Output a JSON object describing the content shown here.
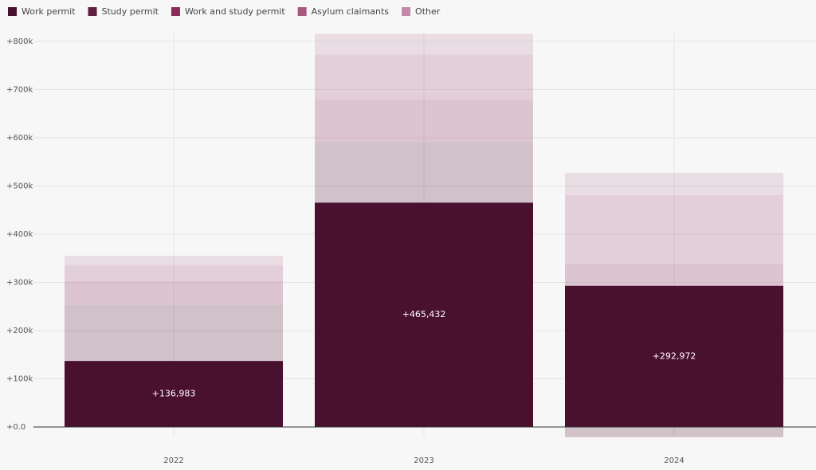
{
  "chart_data": {
    "type": "stacked_bar",
    "categories": [
      "2022",
      "2023",
      "2024"
    ],
    "series": [
      {
        "name": "Work permit",
        "color": "#4a1030",
        "values": [
          136983,
          465432,
          292972
        ],
        "value_labels": [
          "+136,983",
          "+465,432",
          "+292,972"
        ]
      },
      {
        "name": "Study permit",
        "color": "#5e1f40",
        "values": [
          116000,
          125000,
          -21000
        ]
      },
      {
        "name": "Work and study permit",
        "color": "#8a2b5a",
        "values": [
          49000,
          89000,
          46000
        ]
      },
      {
        "name": "Asylum claimants",
        "color": "#a8587f",
        "values": [
          33000,
          93000,
          142000
        ]
      },
      {
        "name": "Other",
        "color": "#c08aa8",
        "values": [
          20000,
          43000,
          46000
        ]
      }
    ],
    "ylim": [
      -25000,
      830000
    ],
    "yticks": [
      {
        "value": 0,
        "label": "+0.0"
      },
      {
        "value": 100000,
        "label": "+100k"
      },
      {
        "value": 200000,
        "label": "+200k"
      },
      {
        "value": 300000,
        "label": "+300k"
      },
      {
        "value": 400000,
        "label": "+400k"
      },
      {
        "value": 500000,
        "label": "+500k"
      },
      {
        "value": 600000,
        "label": "+600k"
      },
      {
        "value": 700000,
        "label": "+700k"
      },
      {
        "value": 800000,
        "label": "+800k"
      }
    ],
    "grid": true,
    "legend": "top"
  }
}
